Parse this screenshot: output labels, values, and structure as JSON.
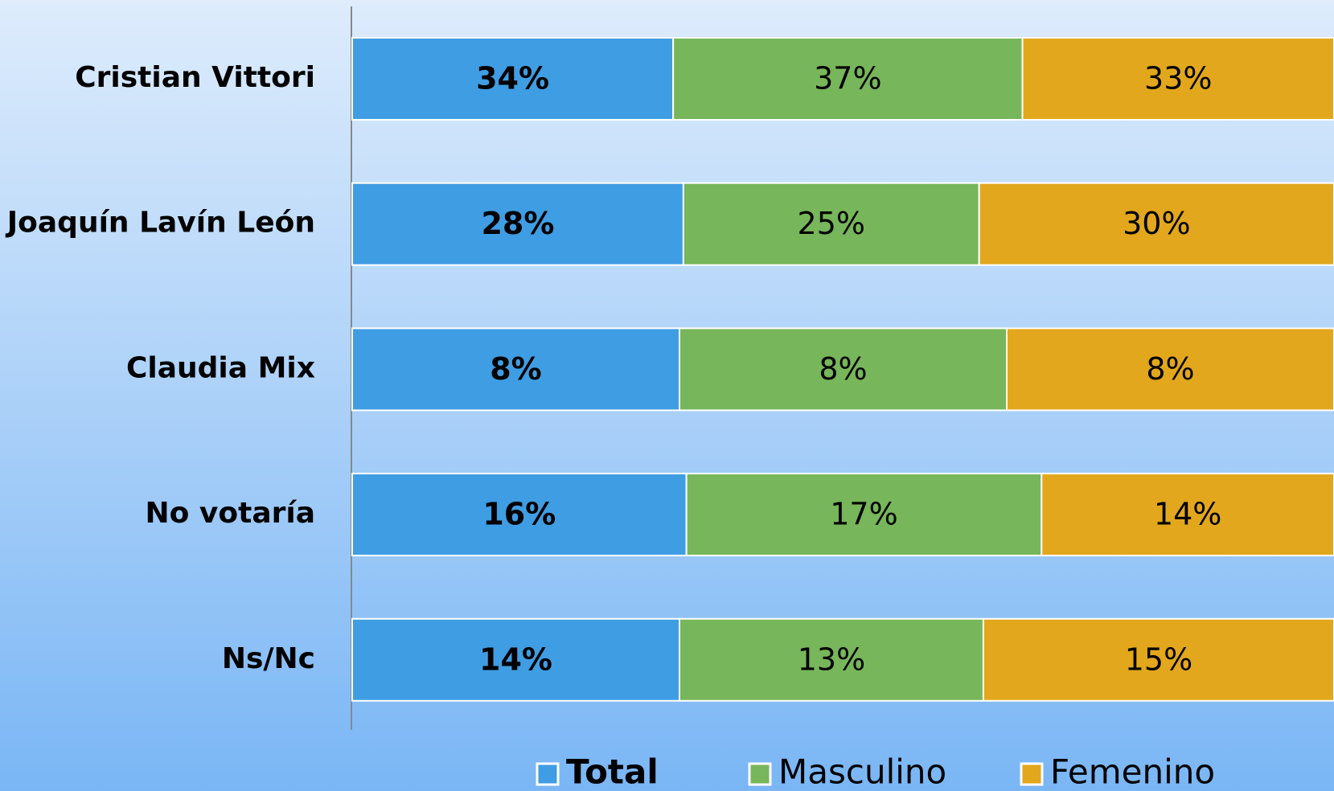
{
  "chart_data": {
    "type": "stacked-bar-100",
    "categories": [
      "Cristian Vittori",
      "Joaquín Lavín León",
      "Claudia Mix",
      "No votaría",
      "Ns/Nc"
    ],
    "series": [
      {
        "name": "Total",
        "color": "#3f9de3",
        "values": [
          34,
          28,
          8,
          16,
          14
        ],
        "value_labels": [
          "34%",
          "28%",
          "8%",
          "16%",
          "14%"
        ]
      },
      {
        "name": "Masculino",
        "color": "#77b65a",
        "values": [
          37,
          25,
          8,
          17,
          13
        ],
        "value_labels": [
          "37%",
          "25%",
          "8%",
          "17%",
          "13%"
        ]
      },
      {
        "name": "Femenino",
        "color": "#e2a71c",
        "values": [
          33,
          30,
          8,
          14,
          15
        ],
        "value_labels": [
          "33%",
          "30%",
          "8%",
          "14%",
          "15%"
        ]
      }
    ],
    "legend": "bottom"
  }
}
